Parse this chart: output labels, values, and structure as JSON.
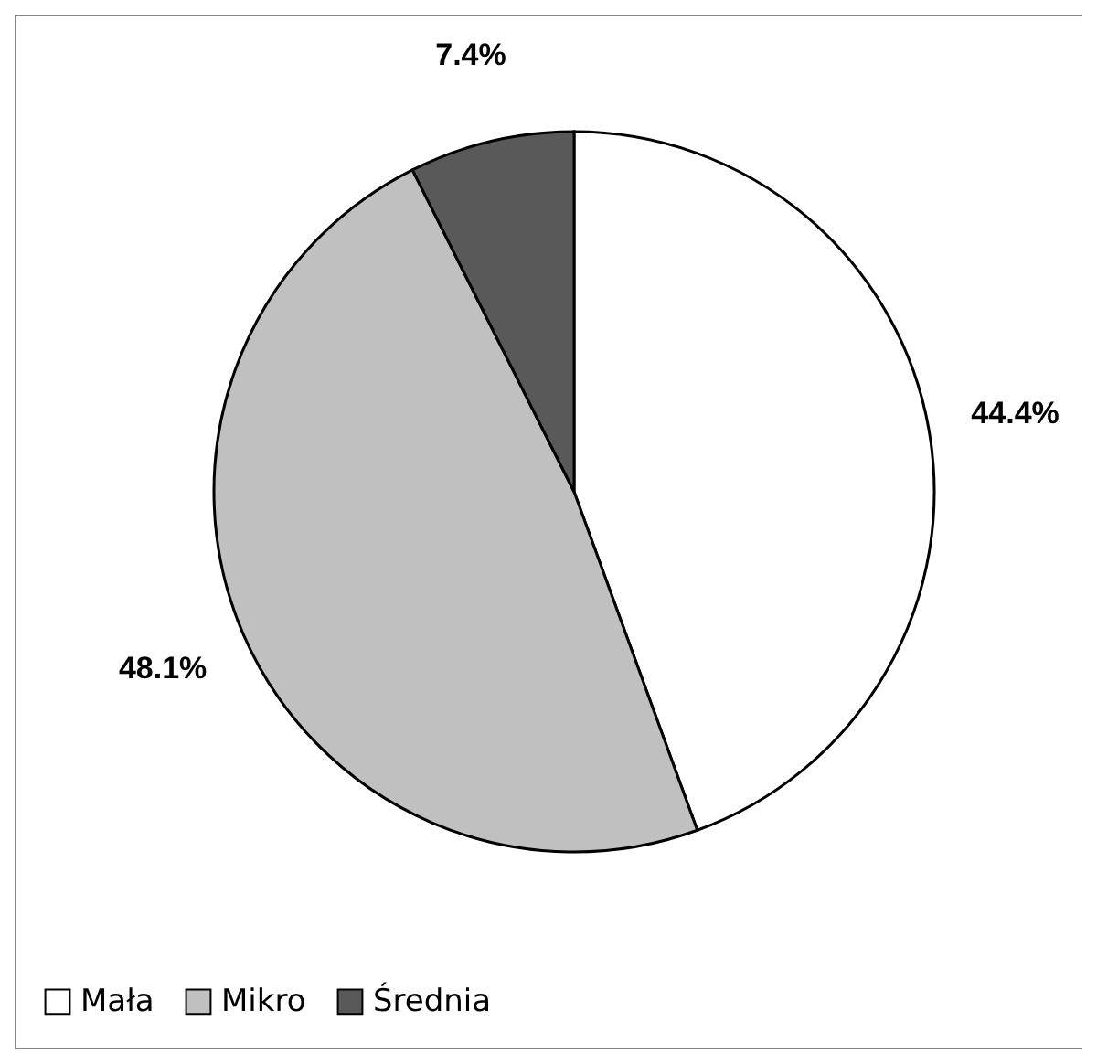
{
  "chart_data": {
    "type": "pie",
    "categories": [
      "Mała",
      "Mikro",
      "Średnia"
    ],
    "values": [
      44.4,
      48.1,
      7.4
    ],
    "colors": [
      "#ffffff",
      "#c0c0c0",
      "#595959"
    ],
    "value_labels": [
      "44.4%",
      "48.1%",
      "7.4%"
    ],
    "legend": "bottom"
  }
}
